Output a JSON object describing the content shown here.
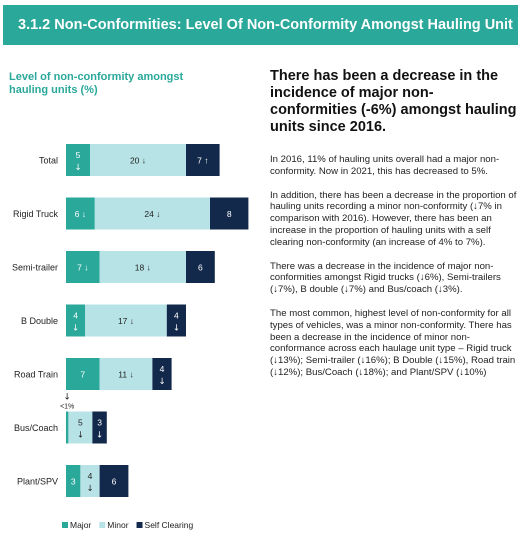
{
  "header": {
    "title": "3.1.2 Non-Conformities: Level Of Non-Conformity Amongst Hauling Unit"
  },
  "chart_title": "Level of non-conformity amongst hauling units (%)",
  "chart_data": {
    "type": "bar",
    "stacked": true,
    "orientation": "horizontal",
    "categories": [
      "Total",
      "Rigid Truck",
      "Semi-trailer",
      "B Double",
      "Road Train",
      "Bus/Coach",
      "Plant/SPV"
    ],
    "series": [
      {
        "name": "Major",
        "color": "#2aa89a",
        "values": [
          5,
          6,
          7,
          4,
          7,
          0.5,
          3
        ],
        "labels": [
          "5",
          "6",
          "7",
          "4",
          "7",
          "<1%",
          "3"
        ],
        "arrows": [
          "↓",
          "↓",
          "↓",
          "↓",
          "",
          "↓",
          ""
        ]
      },
      {
        "name": "Minor",
        "color": "#b7e3e6",
        "values": [
          20,
          24,
          18,
          17,
          11,
          5,
          4
        ],
        "labels": [
          "20",
          "24",
          "18",
          "17",
          "11",
          "5",
          "4"
        ],
        "arrows": [
          "↓",
          "↓",
          "↓",
          "↓",
          "↓",
          "↓",
          "↓"
        ]
      },
      {
        "name": "Self Clearing",
        "color": "#13294b",
        "values": [
          7,
          8,
          6,
          4,
          4,
          3,
          6
        ],
        "labels": [
          "7",
          "8",
          "6",
          "4",
          "4",
          "3",
          "6"
        ],
        "arrows": [
          "↑",
          "",
          "",
          "↓",
          "↓",
          "↓",
          ""
        ]
      }
    ],
    "legend_position": "bottom-left",
    "grid": false
  },
  "right": {
    "headline": "There has been a decrease in the incidence of major non-conformities (-6%) amongst hauling units since 2016.",
    "paragraphs": [
      "In 2016, 11% of hauling units overall had a major non-conformity. Now in 2021, this has decreased to 5%.",
      "In addition, there has been a decrease in the proportion of hauling units recording a minor non-conformity (↓7% in comparison with 2016). However, there has been an increase in the proportion of hauling units with a self clearing non-conformity (an increase of 4% to 7%).",
      "There was a decrease in the incidence of major non-conformities amongst Rigid trucks (↓6%), Semi-trailers (↓7%), B double (↓7%) and Bus/coach (↓3%).",
      "The most common, highest level of non-conformity for all types of vehicles, was a minor non-conformity. There has been a decrease in the incidence of minor non-conformance across each haulage unit type – Rigid truck (↓13%); Semi-trailer (↓16%); B Double (↓15%), Road train (↓12%); Bus/Coach (↓18%); and Plant/SPV (↓10%)"
    ]
  }
}
